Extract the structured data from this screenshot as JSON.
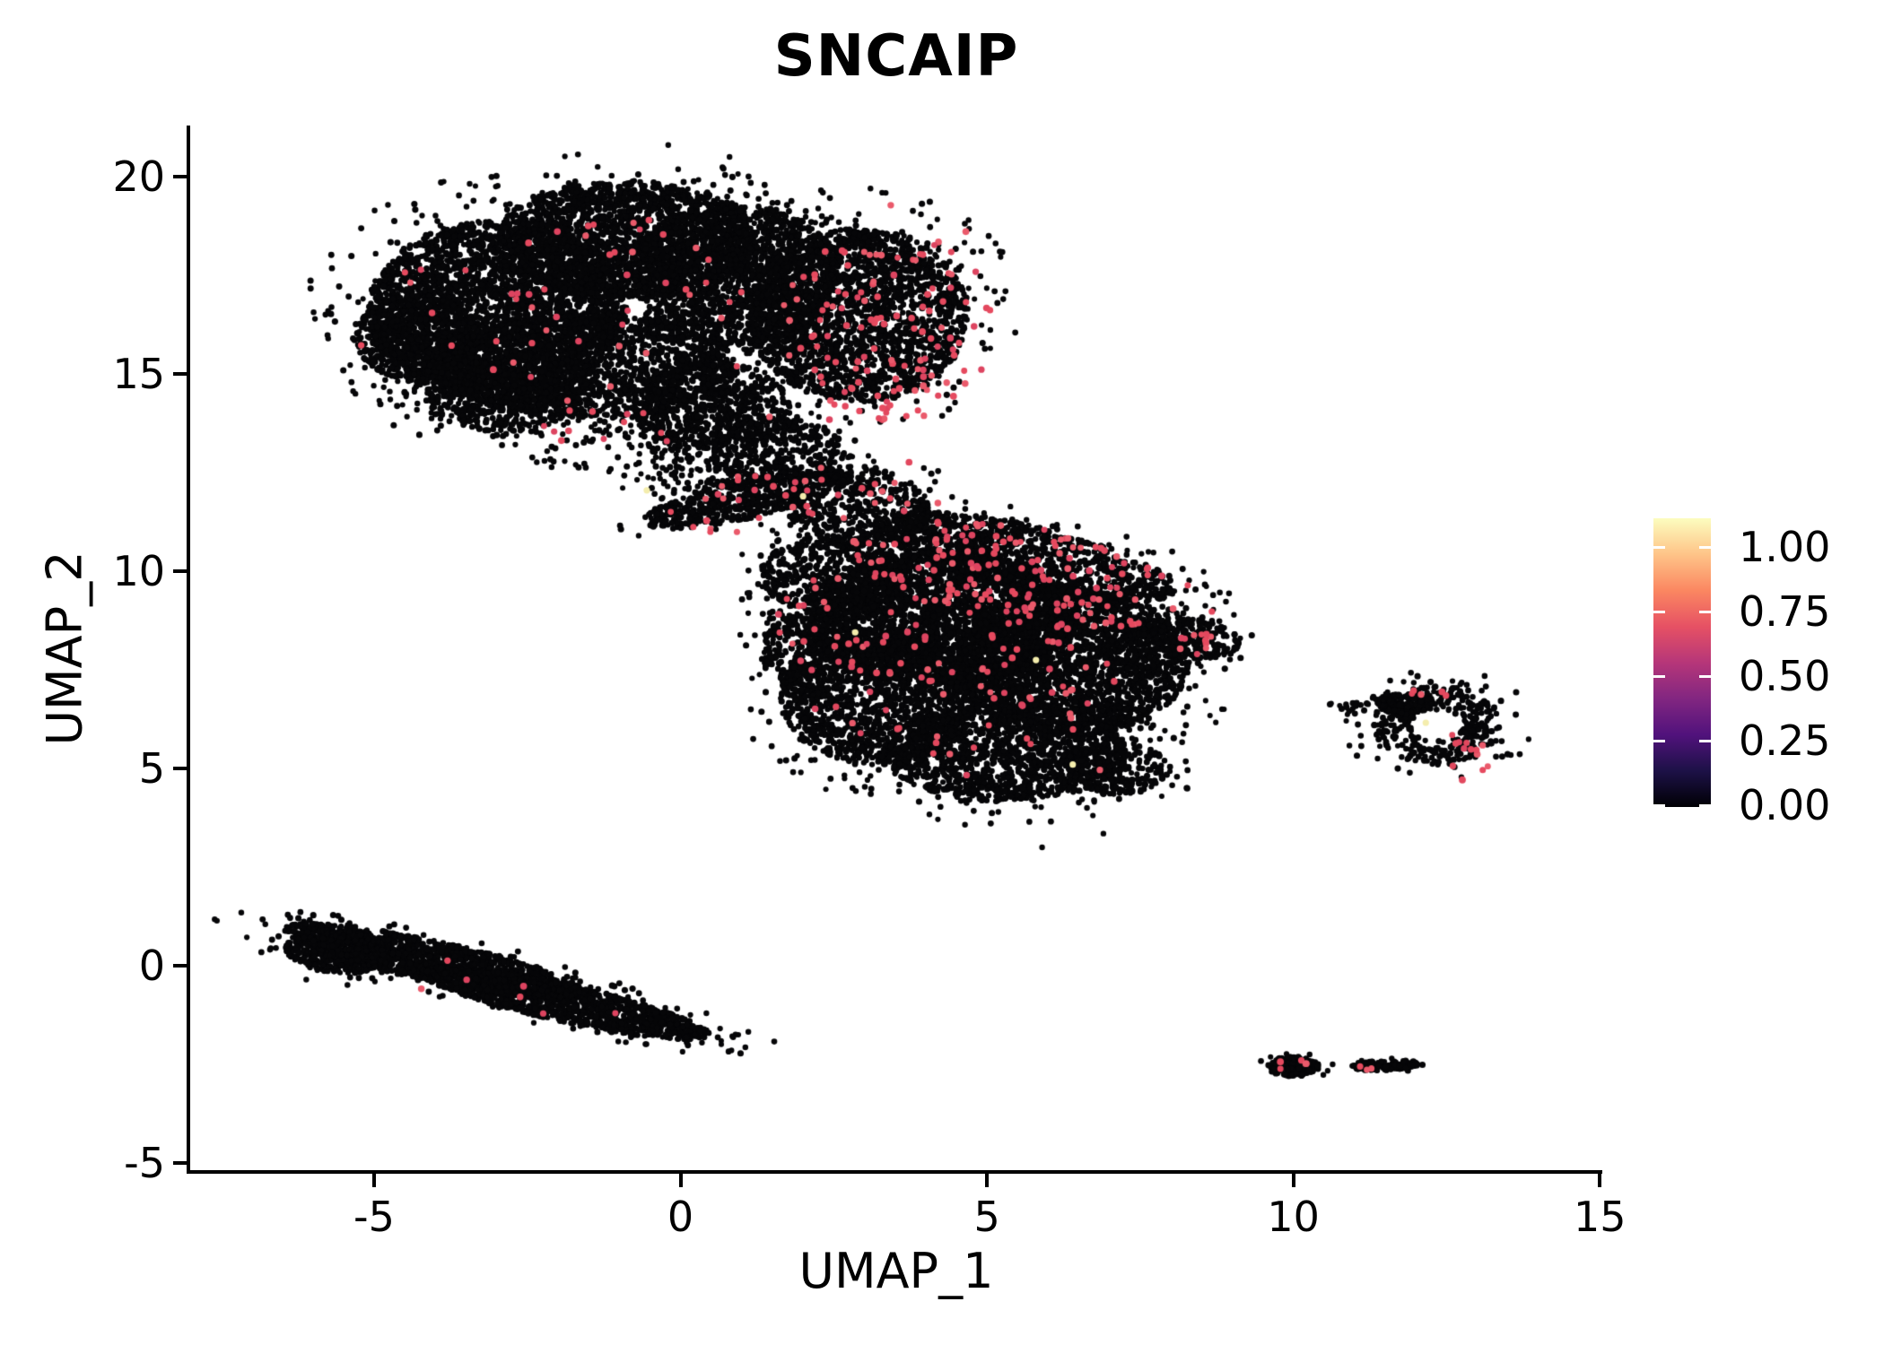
{
  "title": "SNCAIP",
  "chart_data": {
    "type": "scatter",
    "title": "SNCAIP",
    "xlabel": "UMAP_1",
    "ylabel": "UMAP_2",
    "xlim": [
      -8.0,
      15.04
    ],
    "ylim": [
      -5.18,
      21.25
    ],
    "xticks": [
      -5,
      0,
      5,
      10,
      15
    ],
    "yticks": [
      -5,
      0,
      5,
      10,
      15,
      20
    ],
    "grid": false,
    "legend_position": "right",
    "colorbar": {
      "ticks": [
        {
          "label": "1.00",
          "value": 1.0
        },
        {
          "label": "0.75",
          "value": 0.75
        },
        {
          "label": "0.50",
          "value": 0.5
        },
        {
          "label": "0.25",
          "value": 0.25
        },
        {
          "label": "0.00",
          "value": 0.0
        }
      ],
      "palette_name": "magma",
      "palette_stops": [
        "#000004",
        "#1d1147",
        "#51127c",
        "#822681",
        "#b63679",
        "#e65164",
        "#fb8761",
        "#fec488",
        "#fcfdbf"
      ]
    },
    "colors": {
      "point": "#060608",
      "expressing_shades": [
        "#E64A5F",
        "#E2485E",
        "#EA5A6B",
        "#DD4460"
      ],
      "high": "#F4EDAD"
    },
    "clusters": [
      {
        "x": -3.0,
        "y": 16.6,
        "rx": 2.1,
        "ry": 2.3,
        "n": 3000
      },
      {
        "x": -0.9,
        "y": 18.4,
        "rx": 2.1,
        "ry": 1.5,
        "n": 2000
      },
      {
        "x": 0.9,
        "y": 17.5,
        "rx": 1.7,
        "ry": 1.8,
        "n": 1900
      },
      {
        "x": 2.9,
        "y": 16.5,
        "rx": 1.8,
        "ry": 2.2,
        "n": 2200
      },
      {
        "x": -1.5,
        "y": 15.2,
        "rx": 2.4,
        "ry": 1.3,
        "n": 1600
      },
      {
        "x": -4.3,
        "y": 15.9,
        "rx": 1.0,
        "ry": 1.1,
        "n": 600
      },
      {
        "x": 0.5,
        "y": 14.2,
        "rx": 1.3,
        "ry": 1.1,
        "n": 700
      },
      {
        "x": -2.9,
        "y": 14.35,
        "rx": 1.3,
        "ry": 0.8,
        "n": 450
      },
      {
        "x": 1.6,
        "y": 13.0,
        "rx": 1.1,
        "ry": 0.9,
        "n": 420
      },
      {
        "x": 1.1,
        "y": 11.85,
        "rx": 1.8,
        "ry": 0.5,
        "rot": 20,
        "n": 520
      },
      {
        "x": 2.9,
        "y": 11.6,
        "rx": 1.2,
        "ry": 1.05,
        "rot": -25,
        "n": 520
      },
      {
        "x": -1.2,
        "y": 13.1,
        "rx": 1.0,
        "ry": 0.5,
        "n": 60,
        "edge": 0.5
      },
      {
        "x": 0.2,
        "y": 12.7,
        "rx": 0.9,
        "ry": 0.75,
        "n": 130,
        "edge": 0.3
      },
      {
        "x": 5.6,
        "y": 10.35,
        "rx": 2.6,
        "ry": 0.8,
        "rot": -20,
        "n": 1100
      },
      {
        "x": 4.2,
        "y": 8.8,
        "rx": 2.2,
        "ry": 1.7,
        "n": 3000
      },
      {
        "x": 6.4,
        "y": 7.7,
        "rx": 1.9,
        "ry": 1.85,
        "n": 2500
      },
      {
        "x": 3.2,
        "y": 6.8,
        "rx": 1.6,
        "ry": 1.7,
        "n": 1500
      },
      {
        "x": 5.3,
        "y": 5.4,
        "rx": 2.0,
        "ry": 1.25,
        "n": 1400
      },
      {
        "x": 2.5,
        "y": 9.9,
        "rx": 1.2,
        "ry": 1.0,
        "n": 550
      },
      {
        "x": 8.3,
        "y": 8.3,
        "rx": 0.85,
        "ry": 0.5,
        "rot": -15,
        "n": 230
      },
      {
        "x": 7.0,
        "y": 5.0,
        "rx": 1.0,
        "ry": 0.65,
        "n": 260
      },
      {
        "x": 1.9,
        "y": 8.0,
        "rx": 0.6,
        "ry": 0.9,
        "n": 220
      },
      {
        "x": -4.0,
        "y": 0.1,
        "rx": 2.6,
        "ry": 0.5,
        "rot": -19,
        "n": 1400
      },
      {
        "x": -1.9,
        "y": -0.95,
        "rx": 2.5,
        "ry": 0.45,
        "rot": -19,
        "n": 1200
      },
      {
        "x": -5.6,
        "y": 0.35,
        "rx": 0.85,
        "ry": 0.55,
        "rot": -10,
        "n": 420
      },
      {
        "x": 12.35,
        "y": 6.1,
        "rx": 1.05,
        "ry": 1.0,
        "n": 380,
        "hole": 0.4,
        "edge": 0.12
      },
      {
        "x": 11.8,
        "y": 6.65,
        "rx": 0.45,
        "ry": 0.25,
        "n": 140
      },
      {
        "x": 11.05,
        "y": 6.55,
        "rx": 0.35,
        "ry": 0.12,
        "n": 22,
        "edge": 0.4
      },
      {
        "x": 10.0,
        "y": -2.55,
        "rx": 0.42,
        "ry": 0.25,
        "n": 180
      },
      {
        "x": 11.5,
        "y": -2.52,
        "rx": 0.55,
        "ry": 0.13,
        "rot": 4,
        "n": 150
      }
    ],
    "expressing_regions": [
      {
        "x": 3.4,
        "y": 16.2,
        "rx": 1.8,
        "ry": 2.4,
        "n": 130
      },
      {
        "x": -1.8,
        "y": 17.0,
        "rx": 2.8,
        "ry": 2.2,
        "n": 50
      },
      {
        "x": 1.6,
        "y": 11.8,
        "rx": 2.0,
        "ry": 0.8,
        "rot": 10,
        "n": 40
      },
      {
        "x": 5.4,
        "y": 9.9,
        "rx": 2.8,
        "ry": 1.2,
        "rot": -15,
        "n": 170
      },
      {
        "x": 4.6,
        "y": 7.0,
        "rx": 2.6,
        "ry": 1.7,
        "n": 70
      },
      {
        "x": 2.3,
        "y": 8.6,
        "rx": 0.8,
        "ry": 1.3,
        "n": 25
      },
      {
        "x": 8.6,
        "y": 8.3,
        "rx": 0.5,
        "ry": 0.3,
        "n": 10
      },
      {
        "x": 12.95,
        "y": 5.35,
        "rx": 0.4,
        "ry": 0.45,
        "n": 13
      },
      {
        "x": 12.2,
        "y": 6.9,
        "rx": 0.4,
        "ry": 0.15,
        "n": 5
      },
      {
        "x": -3.4,
        "y": -0.5,
        "rx": 2.6,
        "ry": 0.7,
        "rot": -19,
        "n": 7
      },
      {
        "x": 10.0,
        "y": -2.55,
        "rx": 0.3,
        "ry": 0.18,
        "n": 5
      },
      {
        "x": 11.2,
        "y": -2.55,
        "rx": 0.15,
        "ry": 0.1,
        "n": 3
      },
      {
        "x": -1.5,
        "y": 13.8,
        "rx": 1.5,
        "ry": 0.6,
        "n": 12
      }
    ],
    "high_expression_points": [
      [
        5.8,
        7.75
      ],
      [
        2.85,
        8.45
      ],
      [
        6.4,
        5.1
      ],
      [
        2.0,
        11.9
      ],
      [
        12.16,
        6.16
      ],
      [
        -0.55,
        12.05
      ]
    ],
    "singles": [
      [
        -0.2,
        20.8
      ],
      [
        0.8,
        20.5
      ],
      [
        3.1,
        19.7
      ],
      [
        4.7,
        18.9
      ],
      [
        -5.75,
        16.6
      ],
      [
        5.9,
        3.0
      ],
      [
        6.9,
        3.35
      ],
      [
        10.64,
        -2.5
      ],
      [
        -6.6,
        0.45
      ],
      [
        0.35,
        -1.95
      ]
    ]
  }
}
